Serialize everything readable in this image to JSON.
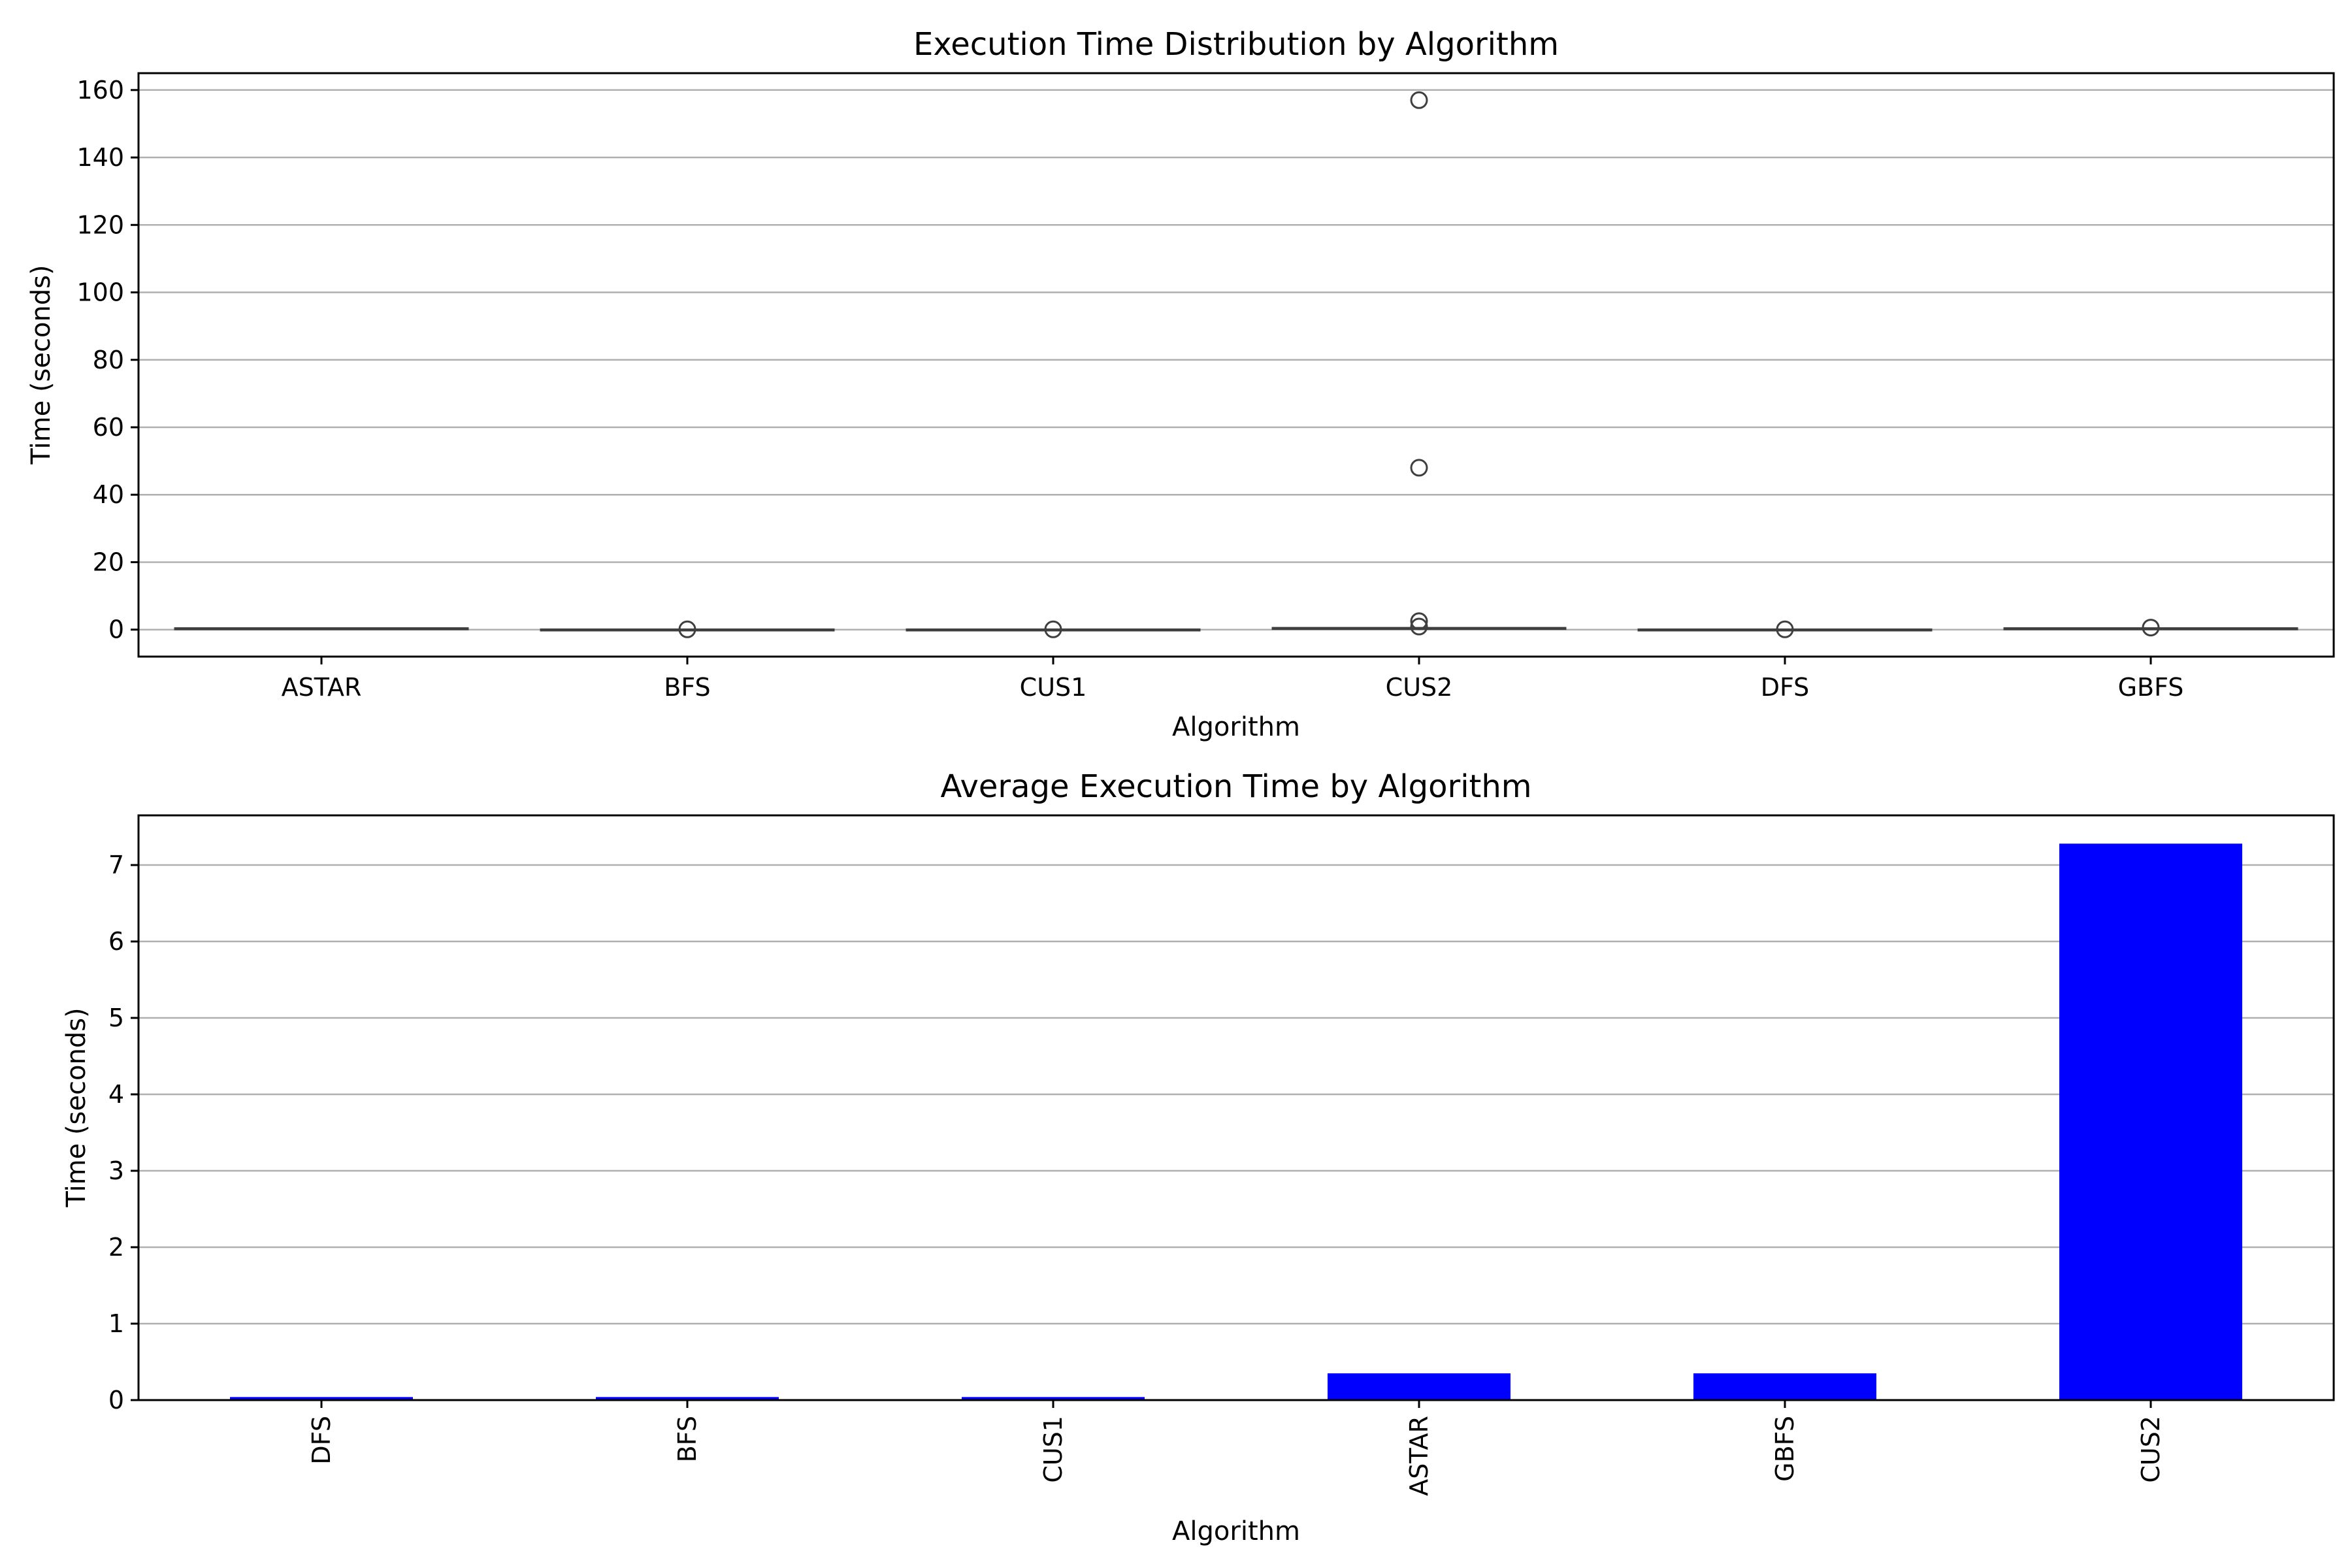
{
  "chart_data": [
    {
      "type": "box",
      "title": "Execution Time Distribution by Algorithm",
      "xlabel": "Algorithm",
      "ylabel": "Time (seconds)",
      "ylim": [
        -8,
        165
      ],
      "yticks": [
        0,
        20,
        40,
        60,
        80,
        100,
        120,
        140,
        160
      ],
      "grid": "y",
      "categories": [
        "ASTAR",
        "BFS",
        "CUS1",
        "CUS2",
        "DFS",
        "GBFS"
      ],
      "boxes": [
        {
          "category": "ASTAR",
          "q1": 0.3,
          "median": 0.35,
          "q3": 0.4,
          "whisker_low": 0.3,
          "whisker_high": 0.45,
          "outliers": []
        },
        {
          "category": "BFS",
          "q1": 0.03,
          "median": 0.04,
          "q3": 0.05,
          "whisker_low": 0.02,
          "whisker_high": 0.06,
          "outliers": [
            0.08
          ]
        },
        {
          "category": "CUS1",
          "q1": 0.03,
          "median": 0.04,
          "q3": 0.05,
          "whisker_low": 0.02,
          "whisker_high": 0.06,
          "outliers": [
            0.08
          ]
        },
        {
          "category": "CUS2",
          "q1": 0.3,
          "median": 0.4,
          "q3": 0.5,
          "whisker_low": 0.2,
          "whisker_high": 0.7,
          "outliers": [
            157,
            48,
            2.5,
            0.9
          ]
        },
        {
          "category": "DFS",
          "q1": 0.03,
          "median": 0.04,
          "q3": 0.05,
          "whisker_low": 0.02,
          "whisker_high": 0.06,
          "outliers": [
            0.08
          ]
        },
        {
          "category": "GBFS",
          "q1": 0.3,
          "median": 0.35,
          "q3": 0.4,
          "whisker_low": 0.3,
          "whisker_high": 0.45,
          "outliers": [
            0.6
          ]
        }
      ]
    },
    {
      "type": "bar",
      "title": "Average Execution Time by Algorithm",
      "xlabel": "Algorithm",
      "ylabel": "Time (seconds)",
      "ylim": [
        0,
        7.65
      ],
      "yticks": [
        0,
        1,
        2,
        3,
        4,
        5,
        6,
        7
      ],
      "grid": "y",
      "bar_color": "#0000ff",
      "categories": [
        "DFS",
        "BFS",
        "CUS1",
        "ASTAR",
        "GBFS",
        "CUS2"
      ],
      "values": [
        0.04,
        0.04,
        0.04,
        0.35,
        0.35,
        7.28
      ]
    }
  ]
}
